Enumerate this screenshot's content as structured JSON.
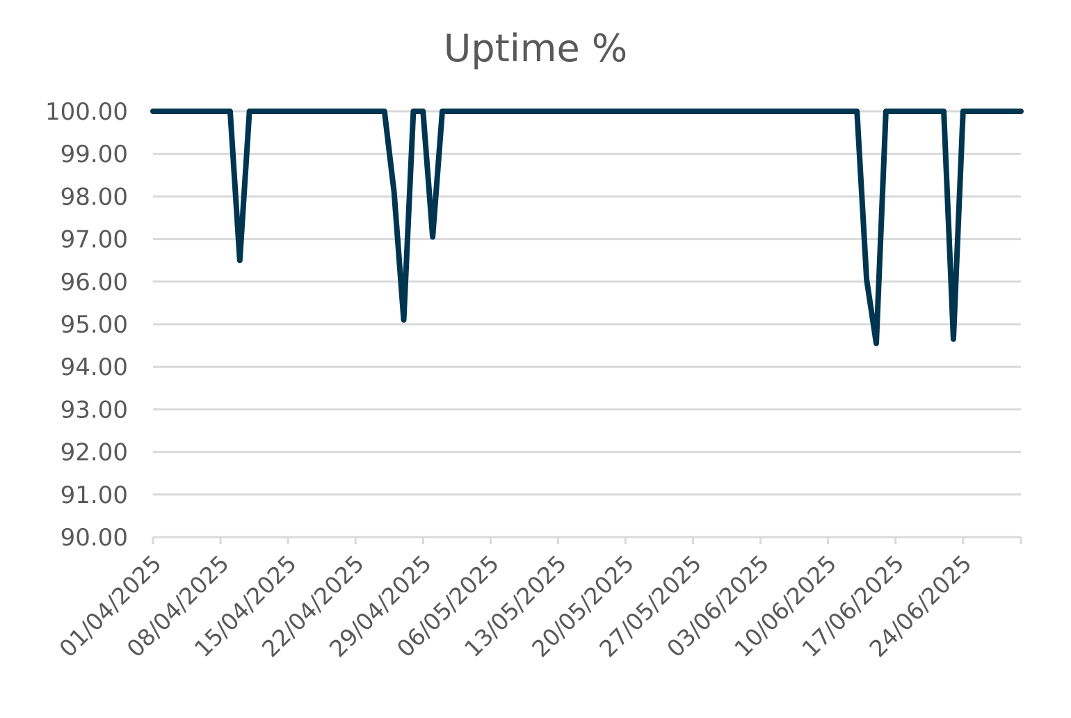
{
  "chart_data": {
    "type": "line",
    "title": "Uptime %",
    "xlabel": "",
    "ylabel": "",
    "ylim": [
      90,
      100
    ],
    "y_ticks": [
      "90.00",
      "91.00",
      "92.00",
      "93.00",
      "94.00",
      "95.00",
      "96.00",
      "97.00",
      "98.00",
      "99.00",
      "100.00"
    ],
    "x_tick_labels": [
      "01/04/2025",
      "08/04/2025",
      "15/04/2025",
      "22/04/2025",
      "29/04/2025",
      "06/05/2025",
      "13/05/2025",
      "20/05/2025",
      "27/05/2025",
      "03/06/2025",
      "10/06/2025",
      "17/06/2025",
      "24/06/2025"
    ],
    "grid": true,
    "legend": "none",
    "line_color": "#003550",
    "series": [
      {
        "points": [
          {
            "x": "01/04/2025",
            "y": 100
          },
          {
            "x": "09/04/2025",
            "y": 100
          },
          {
            "x": "10/04/2025",
            "y": 96.5
          },
          {
            "x": "11/04/2025",
            "y": 100
          },
          {
            "x": "25/04/2025",
            "y": 100
          },
          {
            "x": "26/04/2025",
            "y": 98.1
          },
          {
            "x": "27/04/2025",
            "y": 95.1
          },
          {
            "x": "28/04/2025",
            "y": 100
          },
          {
            "x": "29/04/2025",
            "y": 100
          },
          {
            "x": "30/04/2025",
            "y": 97.05
          },
          {
            "x": "01/05/2025",
            "y": 100
          },
          {
            "x": "13/06/2025",
            "y": 100
          },
          {
            "x": "14/06/2025",
            "y": 96.05
          },
          {
            "x": "15/06/2025",
            "y": 94.55
          },
          {
            "x": "16/06/2025",
            "y": 100
          },
          {
            "x": "22/06/2025",
            "y": 100
          },
          {
            "x": "23/06/2025",
            "y": 94.65
          },
          {
            "x": "24/06/2025",
            "y": 100
          },
          {
            "x": "30/06/2025",
            "y": 100
          }
        ]
      }
    ]
  }
}
